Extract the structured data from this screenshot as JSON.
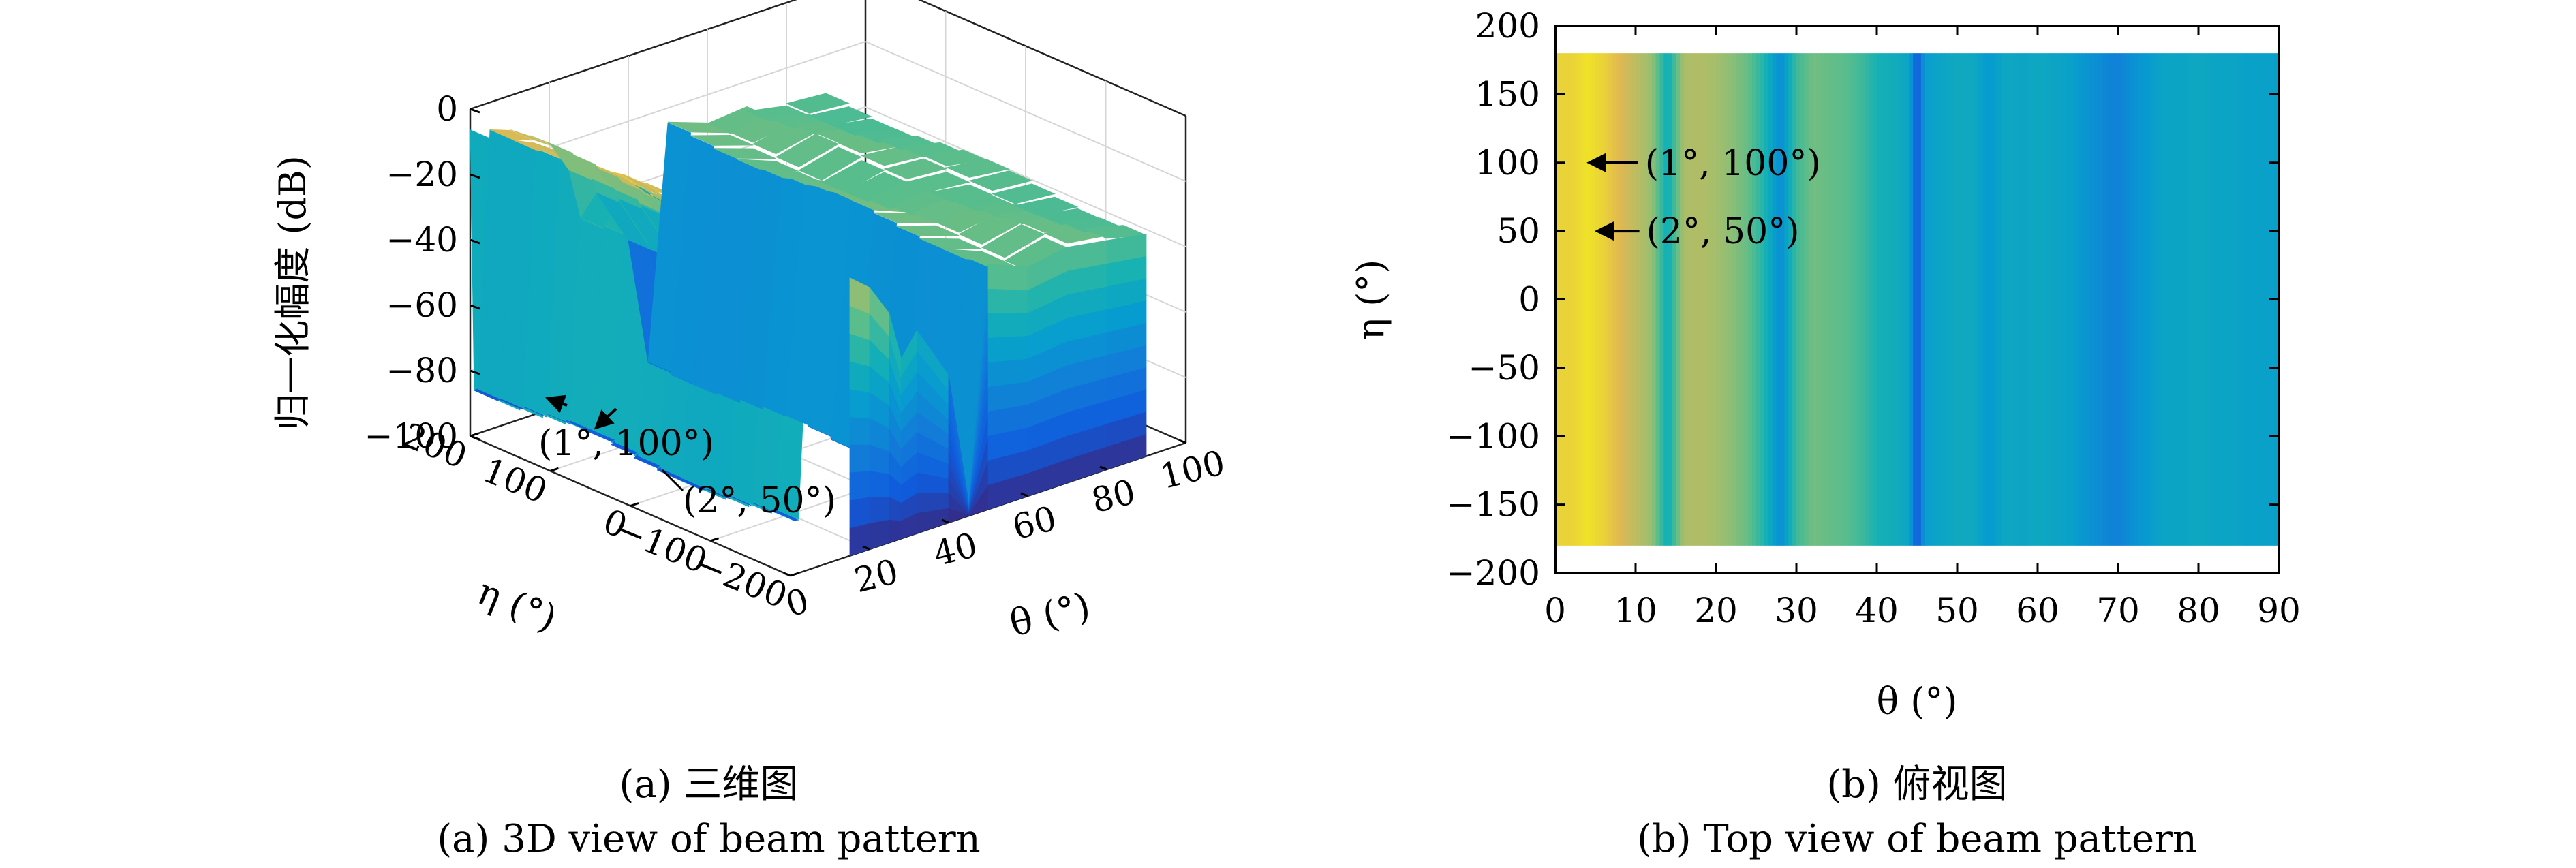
{
  "chart_data": [
    {
      "panel": "a",
      "type": "surface-3d",
      "caption_zh": "(a) 三维图",
      "caption_en": "(a) 3D view of beam pattern",
      "xlabel": "θ (°)",
      "ylabel": "η (°)",
      "zlabel": "归一化幅度 (dB)",
      "xlim": [
        0,
        100
      ],
      "ylim": [
        -200,
        200
      ],
      "zlim": [
        -100,
        0
      ],
      "xticks": [
        "0",
        "20",
        "40",
        "60",
        "80",
        "100"
      ],
      "yticks": [
        "200",
        "100",
        "0",
        "−100",
        "−200"
      ],
      "zticks": [
        "0",
        "−20",
        "−40",
        "−60",
        "−80",
        "−100"
      ],
      "grid": true,
      "theta": [
        0,
        1,
        2,
        5,
        10,
        15,
        20,
        25,
        28,
        32,
        40,
        45,
        50,
        60,
        70,
        80,
        90
      ],
      "surface_db": [
        -5,
        -85,
        -85,
        -7,
        -10,
        -15,
        -20,
        -30,
        -45,
        -38,
        -55,
        -95,
        -25,
        -30,
        -28,
        -30,
        -32
      ],
      "annotations": [
        {
          "label": "(1°, 100°)",
          "theta": 1,
          "eta": 100
        },
        {
          "label": "(2°, 50°)",
          "theta": 2,
          "eta": 50
        }
      ]
    },
    {
      "panel": "b",
      "type": "heatmap",
      "caption_zh": "(b) 俯视图",
      "caption_en": "(b) Top view of beam pattern",
      "xlabel": "θ (°)",
      "ylabel": "η (°)",
      "xlim": [
        0,
        90
      ],
      "ylim": [
        -200,
        200
      ],
      "data_extent_eta": [
        -180,
        180
      ],
      "xticks": [
        "0",
        "10",
        "20",
        "30",
        "40",
        "50",
        "60",
        "70",
        "80",
        "90"
      ],
      "yticks": [
        "200",
        "150",
        "100",
        "50",
        "0",
        "−50",
        "−100",
        "−150",
        "−200"
      ],
      "colormap": "parula",
      "theta_profile": [
        0,
        2,
        4,
        6,
        8,
        10,
        12,
        14,
        16,
        18,
        20,
        22,
        24,
        26,
        28,
        30,
        32,
        34,
        36,
        38,
        40,
        42,
        44,
        45,
        46,
        48,
        50,
        52,
        54,
        56,
        58,
        60,
        62,
        64,
        66,
        68,
        70,
        72,
        74,
        76,
        78,
        80,
        82,
        84,
        86,
        88,
        90
      ],
      "level_profile": [
        0.95,
        0.95,
        0.97,
        0.95,
        0.92,
        0.86,
        0.8,
        0.55,
        0.83,
        0.84,
        0.82,
        0.78,
        0.72,
        0.6,
        0.38,
        0.65,
        0.74,
        0.72,
        0.7,
        0.66,
        0.58,
        0.55,
        0.5,
        0.12,
        0.46,
        0.5,
        0.53,
        0.52,
        0.44,
        0.52,
        0.5,
        0.52,
        0.5,
        0.48,
        0.42,
        0.36,
        0.32,
        0.4,
        0.46,
        0.5,
        0.5,
        0.52,
        0.5,
        0.5,
        0.48,
        0.48,
        0.47
      ],
      "annotations": [
        {
          "label": "(1°, 100°)",
          "theta": 1,
          "eta": 100
        },
        {
          "label": "(2°, 50°)",
          "theta": 2,
          "eta": 50
        }
      ]
    }
  ]
}
